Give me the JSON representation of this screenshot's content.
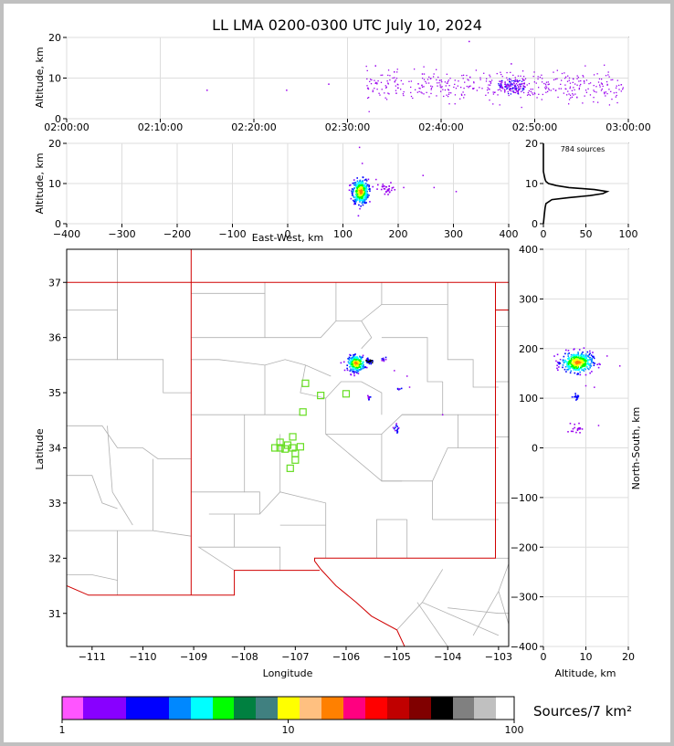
{
  "title": "LL LMA 0200-0300 UTC July 10, 2024",
  "colors": {
    "border_state": "#d00000",
    "border_county": "#b0b0b0",
    "grid": "#dddddd",
    "station": "#66dd22",
    "colorbar": [
      "#ff55ff",
      "#8800ff",
      "#0000ff",
      "#0088ff",
      "#00ffff",
      "#00ff00",
      "#008040",
      "#408080",
      "#ffff00",
      "#ffc080",
      "#ff8000",
      "#ff0080",
      "#ff0000",
      "#c00000",
      "#800000",
      "#000000",
      "#808080",
      "#c0c0c0",
      "#ffffff"
    ]
  },
  "chart_data": [
    {
      "id": "time-height",
      "type": "scatter",
      "ylabel": "Altitude, km",
      "ylim": [
        0,
        20
      ],
      "yticks": [
        "0",
        "10",
        "20"
      ],
      "xticks": [
        "02:00:00",
        "02:10:00",
        "02:20:00",
        "02:30:00",
        "02:40:00",
        "02:50:00",
        "03:00:00"
      ],
      "x_range_minutes": [
        0,
        60
      ],
      "clusters": [
        {
          "x_from": 32,
          "x_to": 59.5,
          "y_mean": 8,
          "y_spread": 1.8,
          "count": 420
        },
        {
          "x_from": 46,
          "x_to": 49,
          "y_mean": 8,
          "y_spread": 1.0,
          "count": 150
        }
      ],
      "isolated": [
        [
          15.0,
          7.0
        ],
        [
          23.5,
          7.0
        ],
        [
          28.0,
          8.5
        ],
        [
          33.0,
          13.0
        ],
        [
          35.0,
          11.5
        ],
        [
          43.0,
          19.0
        ],
        [
          47.5,
          13.5
        ],
        [
          38.0,
          11.0
        ]
      ]
    },
    {
      "id": "ew-height",
      "type": "scatter",
      "xlabel": "East-West, km",
      "ylabel": "Altitude, km",
      "xlim": [
        -400,
        400
      ],
      "ylim": [
        0,
        20
      ],
      "xticks": [
        "−400",
        "−300",
        "−200",
        "−100",
        "0",
        "100",
        "200",
        "300",
        "400"
      ],
      "yticks": [
        "0",
        "10",
        "20"
      ],
      "clusters": [
        {
          "x_mean": 132,
          "x_spread": 7,
          "y_mean": 8,
          "y_spread": 1.5,
          "count": 380
        },
        {
          "x_mean": 180,
          "x_spread": 8,
          "y_mean": 8.5,
          "y_spread": 0.8,
          "count": 30
        }
      ],
      "isolated": [
        [
          130,
          19
        ],
        [
          135,
          15
        ],
        [
          245,
          12
        ],
        [
          265,
          9
        ],
        [
          305,
          8
        ],
        [
          210,
          9
        ],
        [
          160,
          11
        ]
      ]
    },
    {
      "id": "altitude-histogram",
      "type": "line",
      "annotation": "784 sources",
      "xlim": [
        0,
        100
      ],
      "ylim": [
        0,
        20
      ],
      "xticks": [
        "0",
        "50",
        "100"
      ],
      "yticks": [
        "0",
        "10",
        "20"
      ],
      "profile": [
        [
          0,
          0
        ],
        [
          1,
          2
        ],
        [
          2,
          4
        ],
        [
          3,
          5
        ],
        [
          10,
          6
        ],
        [
          30,
          6.5
        ],
        [
          55,
          7
        ],
        [
          70,
          7.5
        ],
        [
          75,
          8
        ],
        [
          60,
          8.5
        ],
        [
          30,
          9
        ],
        [
          15,
          9.5
        ],
        [
          6,
          10
        ],
        [
          3,
          10.5
        ],
        [
          2,
          11
        ],
        [
          1,
          12
        ],
        [
          0,
          13
        ],
        [
          0,
          20
        ]
      ]
    },
    {
      "id": "plan-view",
      "type": "scatter",
      "xlabel": "Longitude",
      "ylabel": "Latitude",
      "xlim": [
        -111.5,
        -102.8
      ],
      "ylim": [
        30.4,
        37.6
      ],
      "xticks": [
        "−111",
        "−110",
        "−109",
        "−108",
        "−107",
        "−106",
        "−105",
        "−104",
        "−103"
      ],
      "yticks": [
        "31",
        "32",
        "33",
        "34",
        "35",
        "36",
        "37"
      ],
      "stations": [
        [
          -106.8,
          35.17
        ],
        [
          -106.5,
          34.95
        ],
        [
          -106.0,
          34.98
        ],
        [
          -106.85,
          34.65
        ],
        [
          -107.05,
          34.2
        ],
        [
          -107.3,
          34.1
        ],
        [
          -107.15,
          34.05
        ],
        [
          -107.4,
          34.0
        ],
        [
          -107.2,
          33.98
        ],
        [
          -107.3,
          34.0
        ],
        [
          -107.05,
          34.0
        ],
        [
          -106.9,
          34.02
        ],
        [
          -107.0,
          33.9
        ],
        [
          -107.0,
          33.78
        ],
        [
          -107.1,
          33.63
        ]
      ],
      "clusters": [
        {
          "x_mean": -105.8,
          "x_spread": 0.08,
          "y_mean": 35.53,
          "y_spread": 0.07,
          "count": 260
        },
        {
          "x_mean": -105.55,
          "x_spread": 0.04,
          "y_mean": 35.57,
          "y_spread": 0.02,
          "count": 30
        },
        {
          "x_mean": -105.25,
          "x_spread": 0.03,
          "y_mean": 35.6,
          "y_spread": 0.02,
          "count": 10
        },
        {
          "x_mean": -105.55,
          "x_spread": 0.02,
          "y_mean": 34.9,
          "y_spread": 0.02,
          "count": 12
        },
        {
          "x_mean": -104.95,
          "x_spread": 0.02,
          "y_mean": 35.08,
          "y_spread": 0.02,
          "count": 6
        },
        {
          "x_mean": -105.0,
          "x_spread": 0.04,
          "y_mean": 34.35,
          "y_spread": 0.05,
          "count": 14
        }
      ],
      "isolated": [
        [
          -105.05,
          35.4
        ],
        [
          -104.75,
          35.1
        ],
        [
          -104.1,
          34.6
        ],
        [
          -104.8,
          35.3
        ]
      ]
    },
    {
      "id": "ns-height",
      "type": "scatter",
      "xlabel": "Altitude, km",
      "ylabel": "North-South, km",
      "xlim": [
        0,
        20
      ],
      "ylim": [
        -400,
        400
      ],
      "xticks": [
        "0",
        "10",
        "20"
      ],
      "yticks": [
        "−400",
        "−300",
        "−200",
        "−100",
        "0",
        "100",
        "200",
        "300",
        "400"
      ],
      "clusters": [
        {
          "x_mean": 8,
          "x_spread": 1.8,
          "y_mean": 172,
          "y_spread": 10,
          "count": 380
        },
        {
          "x_mean": 8,
          "x_spread": 0.5,
          "y_mean": 103,
          "y_spread": 3,
          "count": 15
        },
        {
          "x_mean": 7.8,
          "x_spread": 0.6,
          "y_mean": 40,
          "y_spread": 5,
          "count": 20
        }
      ],
      "isolated": [
        [
          13,
          45
        ],
        [
          12,
          122
        ],
        [
          10,
          125
        ],
        [
          18,
          165
        ],
        [
          15,
          185
        ],
        [
          4,
          178
        ],
        [
          3,
          175
        ]
      ]
    }
  ],
  "colorbar": {
    "label": "Sources/7 km²",
    "tick_labels": [
      "1",
      "10",
      "100"
    ],
    "range": [
      1,
      100
    ],
    "scale": "log"
  }
}
